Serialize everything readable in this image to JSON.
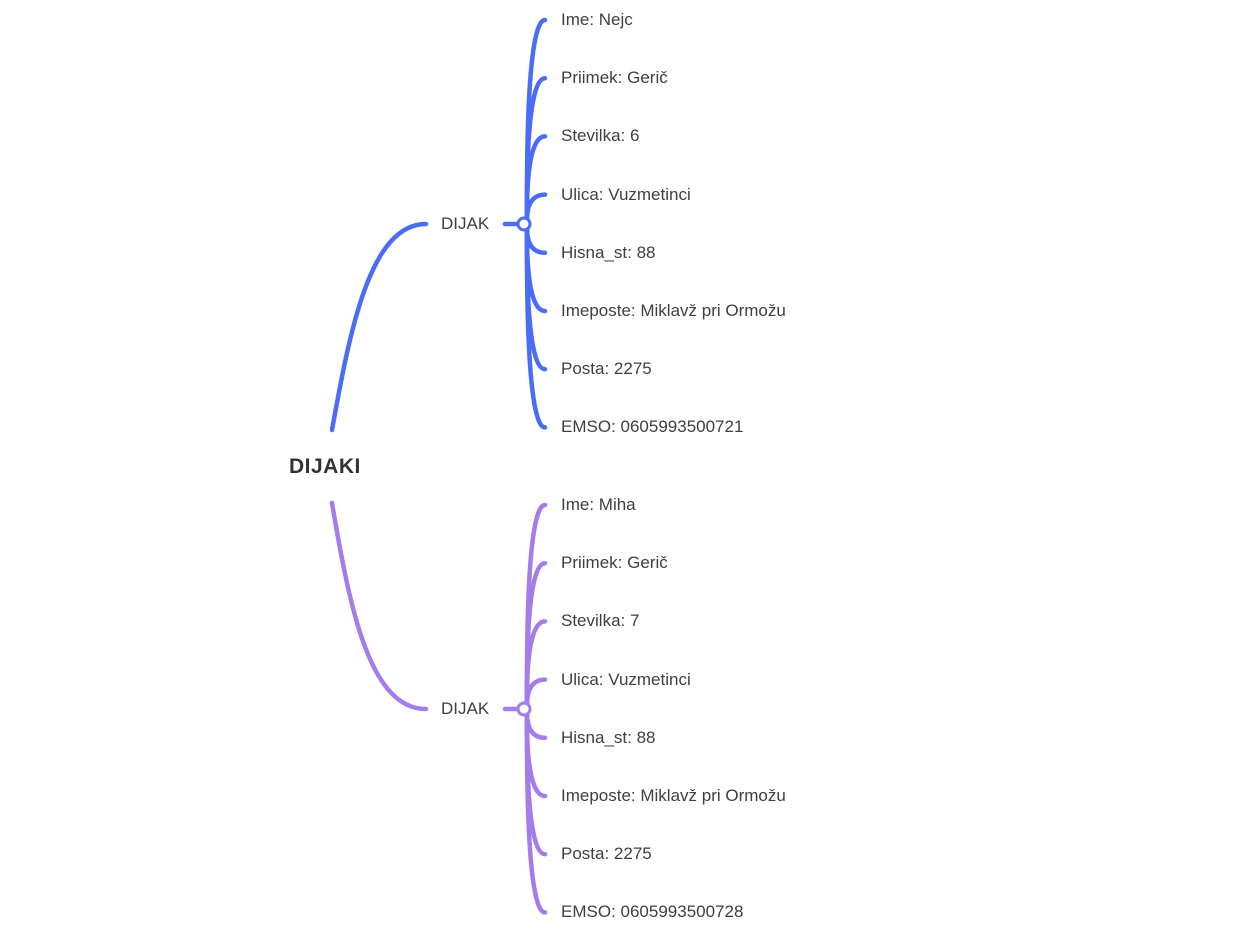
{
  "root": {
    "label": "DIJAKI"
  },
  "colors": {
    "branch_1": "#4a6cf7",
    "branch_2": "#a57cec",
    "background": "#ffffff",
    "text": "#3f3f3f"
  },
  "branches": [
    {
      "label": "DIJAK",
      "color_key": "branch_1",
      "fields": [
        "Ime: Nejc",
        "Priimek: Gerič",
        "Stevilka: 6",
        "Ulica: Vuzmetinci",
        "Hisna_st: 88",
        "Imeposte: Miklavž pri Ormožu",
        "Posta: 2275",
        "EMSO: 0605993500721"
      ]
    },
    {
      "label": "DIJAK",
      "color_key": "branch_2",
      "fields": [
        "Ime: Miha",
        "Priimek: Gerič",
        "Stevilka: 7",
        "Ulica: Vuzmetinci",
        "Hisna_st: 88",
        "Imeposte: Miklavž pri Ormožu",
        "Posta: 2275",
        "EMSO: 0605993500728"
      ]
    }
  ]
}
